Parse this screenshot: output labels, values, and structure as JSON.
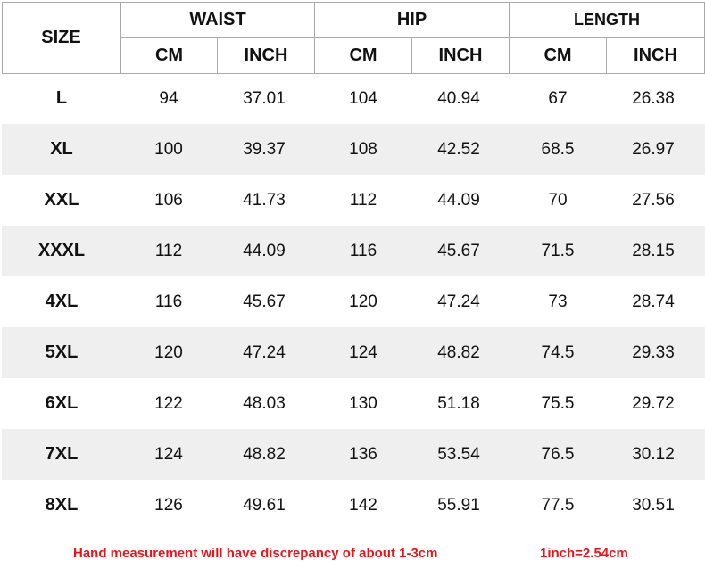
{
  "table": {
    "header": {
      "size": "SIZE",
      "groups": [
        "WAIST",
        "HIP",
        "LENGTH"
      ],
      "sub": [
        "CM",
        "INCH",
        "CM",
        "INCH",
        "CM",
        "INCH"
      ]
    },
    "rows": [
      [
        "L",
        94,
        37.01,
        104,
        40.94,
        67,
        26.38
      ],
      [
        "XL",
        100,
        39.37,
        108,
        42.52,
        68.5,
        26.97
      ],
      [
        "XXL",
        106,
        41.73,
        112,
        44.09,
        70,
        27.56
      ],
      [
        "XXXL",
        112,
        44.09,
        116,
        45.67,
        71.5,
        28.15
      ],
      [
        "4XL",
        116,
        45.67,
        120,
        47.24,
        73,
        28.74
      ],
      [
        "5XL",
        120,
        47.24,
        124,
        48.82,
        74.5,
        29.33
      ],
      [
        "6XL",
        122,
        48.03,
        130,
        51.18,
        75.5,
        29.72
      ],
      [
        "7XL",
        124,
        48.82,
        136,
        53.54,
        76.5,
        30.12
      ],
      [
        "8XL",
        126,
        49.61,
        142,
        55.91,
        77.5,
        30.51
      ]
    ]
  },
  "footer": {
    "note": "Hand measurement will have discrepancy of about 1-3cm",
    "conversion": "1inch=2.54cm"
  }
}
